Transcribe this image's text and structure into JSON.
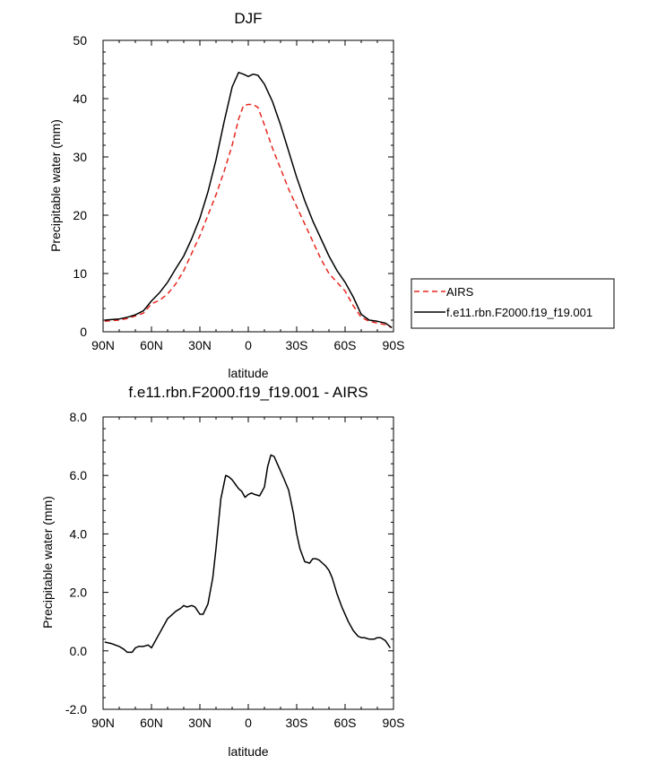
{
  "chart_data": [
    {
      "type": "line",
      "title": "DJF",
      "xlabel": "latitude",
      "ylabel": "Precipitable water (mm)",
      "xlim": [
        90,
        -90
      ],
      "ylim": [
        0,
        50
      ],
      "xticks": [
        90,
        60,
        30,
        0,
        -30,
        -60,
        -90
      ],
      "xtick_labels": [
        "90N",
        "60N",
        "30N",
        "0",
        "30S",
        "60S",
        "90S"
      ],
      "yticks": [
        0,
        10,
        20,
        30,
        40,
        50
      ],
      "ytick_labels": [
        "0",
        "10",
        "20",
        "30",
        "40",
        "50"
      ],
      "legend": {
        "position": "right",
        "entries": [
          "AIRS",
          "f.e11.rbn.F2000.f19_f19.001"
        ]
      },
      "series": [
        {
          "name": "AIRS",
          "color": "#e8271f",
          "dash": "dashed",
          "x": [
            89,
            85,
            80,
            75,
            70,
            65,
            60,
            55,
            50,
            45,
            40,
            35,
            30,
            25,
            20,
            15,
            10,
            6,
            3,
            0,
            -3,
            -6,
            -10,
            -15,
            -20,
            -25,
            -30,
            -35,
            -40,
            -45,
            -50,
            -55,
            -60,
            -65,
            -70,
            -75,
            -80,
            -85,
            -89
          ],
          "y": [
            1.8,
            1.9,
            2.0,
            2.3,
            2.7,
            3.2,
            4.8,
            5.4,
            6.5,
            8.2,
            10.5,
            13.5,
            16.5,
            20.0,
            23.5,
            27.5,
            32.0,
            36.5,
            38.8,
            39.0,
            39.0,
            38.5,
            35.5,
            31.5,
            28.0,
            24.5,
            21.5,
            18.5,
            15.5,
            12.5,
            10.0,
            8.5,
            7.0,
            4.5,
            2.5,
            1.8,
            1.5,
            1.2,
            0.7
          ]
        },
        {
          "name": "f.e11.rbn.F2000.f19_f19.001",
          "color": "#000000",
          "dash": "solid",
          "x": [
            89,
            85,
            80,
            75,
            70,
            65,
            60,
            55,
            50,
            45,
            40,
            35,
            30,
            25,
            20,
            15,
            10,
            6,
            3,
            0,
            -3,
            -6,
            -10,
            -15,
            -20,
            -25,
            -30,
            -35,
            -40,
            -45,
            -50,
            -55,
            -60,
            -65,
            -70,
            -75,
            -80,
            -85,
            -89
          ],
          "y": [
            2.0,
            2.1,
            2.2,
            2.5,
            2.9,
            3.6,
            5.3,
            6.7,
            8.5,
            10.8,
            13.0,
            16.0,
            19.5,
            24.0,
            29.5,
            36.0,
            42.0,
            44.5,
            44.2,
            43.8,
            44.2,
            44.0,
            42.5,
            39.5,
            35.5,
            31.0,
            26.5,
            22.5,
            19.0,
            16.0,
            13.0,
            10.5,
            8.5,
            6.0,
            3.0,
            2.0,
            1.8,
            1.5,
            0.7
          ]
        }
      ]
    },
    {
      "type": "line",
      "title": "f.e11.rbn.F2000.f19_f19.001 - AIRS",
      "xlabel": "latitude",
      "ylabel": "Precipitable water (mm)",
      "xlim": [
        90,
        -90
      ],
      "ylim": [
        -2,
        8
      ],
      "xticks": [
        90,
        60,
        30,
        0,
        -30,
        -60,
        -90
      ],
      "xtick_labels": [
        "90N",
        "60N",
        "30N",
        "0",
        "30S",
        "60S",
        "90S"
      ],
      "yticks": [
        -2,
        0,
        2,
        4,
        6,
        8
      ],
      "ytick_labels": [
        "-2.0",
        "0.0",
        "2.0",
        "4.0",
        "6.0",
        "8.0"
      ],
      "series": [
        {
          "name": "f.e11.rbn.F2000.f19_f19.001 - AIRS",
          "color": "#000000",
          "dash": "solid",
          "x": [
            89,
            85,
            80,
            77,
            75,
            72,
            70,
            68,
            65,
            62,
            60,
            58,
            55,
            50,
            45,
            42,
            40,
            38,
            35,
            33,
            30,
            28,
            25,
            22,
            20,
            17,
            14,
            12,
            10,
            8,
            6,
            4,
            2,
            0,
            -2,
            -4,
            -7,
            -10,
            -12,
            -14,
            -16,
            -18,
            -20,
            -22,
            -25,
            -28,
            -30,
            -32,
            -35,
            -38,
            -40,
            -42,
            -44,
            -46,
            -48,
            -50,
            -52,
            -55,
            -58,
            -62,
            -65,
            -68,
            -70,
            -72,
            -75,
            -78,
            -80,
            -82,
            -85,
            -88
          ],
          "y": [
            0.3,
            0.25,
            0.15,
            0.05,
            -0.05,
            -0.05,
            0.1,
            0.15,
            0.15,
            0.2,
            0.1,
            0.3,
            0.6,
            1.1,
            1.35,
            1.45,
            1.55,
            1.5,
            1.55,
            1.5,
            1.25,
            1.25,
            1.6,
            2.5,
            3.5,
            5.2,
            6.0,
            5.95,
            5.85,
            5.7,
            5.55,
            5.45,
            5.25,
            5.35,
            5.4,
            5.35,
            5.3,
            5.6,
            6.3,
            6.7,
            6.65,
            6.4,
            6.15,
            5.9,
            5.5,
            4.7,
            4.0,
            3.5,
            3.05,
            3.0,
            3.15,
            3.15,
            3.1,
            3.0,
            2.9,
            2.75,
            2.5,
            1.95,
            1.5,
            1.0,
            0.7,
            0.5,
            0.45,
            0.45,
            0.4,
            0.4,
            0.45,
            0.45,
            0.35,
            0.1
          ]
        }
      ]
    }
  ]
}
